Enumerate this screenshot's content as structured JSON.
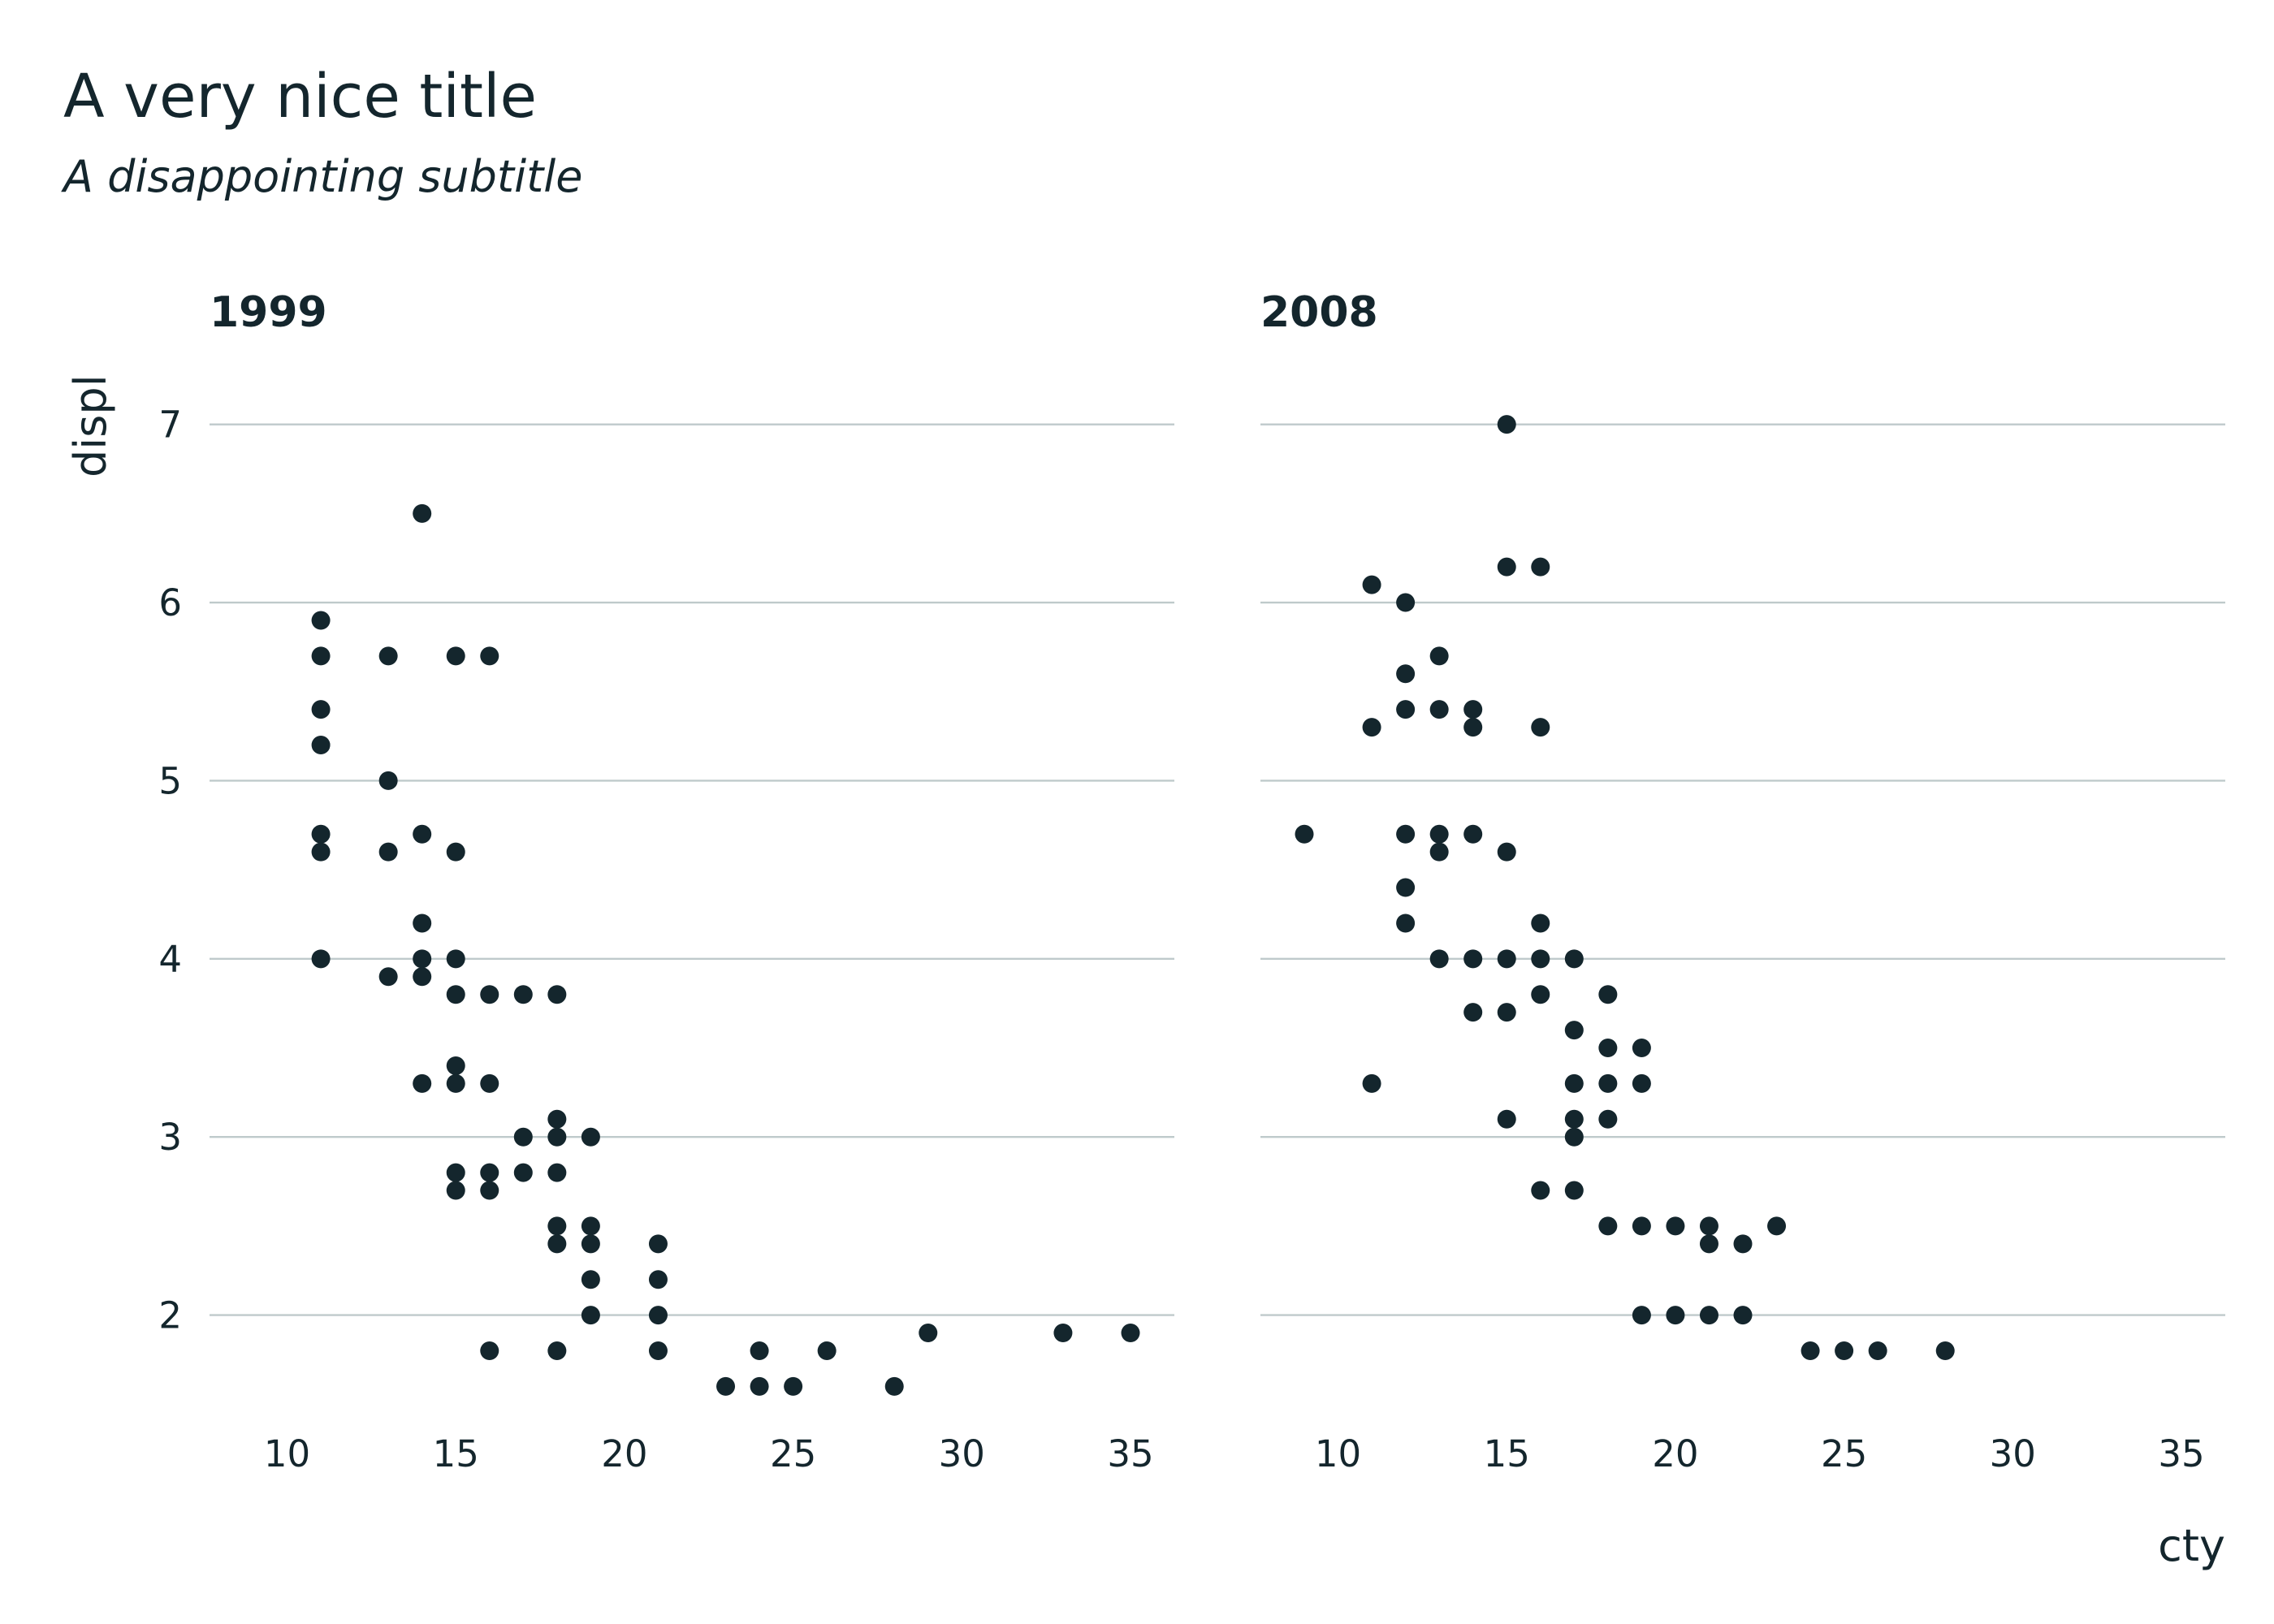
{
  "chart_data": {
    "type": "scatter",
    "title": "A very nice title",
    "subtitle": "A disappointing subtitle",
    "xlabel": "cty",
    "ylabel": "displ",
    "xlim": [
      7.7,
      36.3
    ],
    "ylim": [
      1.36,
      7.24
    ],
    "x_ticks": [
      10,
      15,
      20,
      25,
      30,
      35
    ],
    "y_ticks": [
      2,
      3,
      4,
      5,
      6,
      7
    ],
    "grid": "horizontal major gridlines",
    "point_color": "#14262d",
    "grid_color": "#bfcacb",
    "panels": [
      {
        "label": "1999",
        "points": [
          [
            11,
            5.9
          ],
          [
            11,
            5.7
          ],
          [
            11,
            5.4
          ],
          [
            11,
            5.2
          ],
          [
            11,
            4.7
          ],
          [
            11,
            4.6
          ],
          [
            11,
            4.0
          ],
          [
            13,
            5.7
          ],
          [
            13,
            5.0
          ],
          [
            13,
            4.6
          ],
          [
            13,
            3.9
          ],
          [
            14,
            6.5
          ],
          [
            14,
            4.7
          ],
          [
            14,
            4.2
          ],
          [
            14,
            4.0
          ],
          [
            14,
            3.9
          ],
          [
            14,
            3.3
          ],
          [
            15,
            5.7
          ],
          [
            15,
            4.6
          ],
          [
            15,
            4.0
          ],
          [
            15,
            3.8
          ],
          [
            15,
            3.4
          ],
          [
            15,
            3.3
          ],
          [
            15,
            2.8
          ],
          [
            15,
            2.7
          ],
          [
            16,
            5.7
          ],
          [
            16,
            3.8
          ],
          [
            16,
            3.3
          ],
          [
            16,
            2.8
          ],
          [
            16,
            2.7
          ],
          [
            16,
            1.8
          ],
          [
            17,
            3.8
          ],
          [
            17,
            3.0
          ],
          [
            17,
            2.8
          ],
          [
            18,
            3.8
          ],
          [
            18,
            3.1
          ],
          [
            18,
            3.0
          ],
          [
            18,
            2.8
          ],
          [
            18,
            2.5
          ],
          [
            18,
            2.4
          ],
          [
            18,
            1.8
          ],
          [
            19,
            3.0
          ],
          [
            19,
            2.5
          ],
          [
            19,
            2.4
          ],
          [
            19,
            2.2
          ],
          [
            19,
            2.0
          ],
          [
            21,
            2.4
          ],
          [
            21,
            2.2
          ],
          [
            21,
            2.0
          ],
          [
            21,
            1.8
          ],
          [
            23,
            1.6
          ],
          [
            24,
            1.8
          ],
          [
            24,
            1.6
          ],
          [
            25,
            1.6
          ],
          [
            26,
            1.8
          ],
          [
            28,
            1.6
          ],
          [
            29,
            1.9
          ],
          [
            33,
            1.9
          ],
          [
            35,
            1.9
          ]
        ]
      },
      {
        "label": "2008",
        "points": [
          [
            9,
            4.7
          ],
          [
            11,
            6.1
          ],
          [
            11,
            5.3
          ],
          [
            11,
            3.3
          ],
          [
            12,
            6.0
          ],
          [
            12,
            5.6
          ],
          [
            12,
            5.4
          ],
          [
            12,
            4.7
          ],
          [
            12,
            4.4
          ],
          [
            12,
            4.2
          ],
          [
            13,
            5.7
          ],
          [
            13,
            5.4
          ],
          [
            13,
            4.7
          ],
          [
            13,
            4.6
          ],
          [
            13,
            4.0
          ],
          [
            14,
            5.4
          ],
          [
            14,
            5.3
          ],
          [
            14,
            4.7
          ],
          [
            14,
            4.0
          ],
          [
            14,
            3.7
          ],
          [
            15,
            7.0
          ],
          [
            15,
            6.2
          ],
          [
            15,
            4.6
          ],
          [
            15,
            4.0
          ],
          [
            15,
            3.7
          ],
          [
            15,
            3.1
          ],
          [
            16,
            6.2
          ],
          [
            16,
            5.3
          ],
          [
            16,
            4.2
          ],
          [
            16,
            4.0
          ],
          [
            16,
            3.8
          ],
          [
            16,
            2.7
          ],
          [
            17,
            4.0
          ],
          [
            17,
            3.6
          ],
          [
            17,
            3.3
          ],
          [
            17,
            3.1
          ],
          [
            17,
            3.0
          ],
          [
            17,
            2.7
          ],
          [
            18,
            3.8
          ],
          [
            18,
            3.5
          ],
          [
            18,
            3.3
          ],
          [
            18,
            3.1
          ],
          [
            18,
            2.5
          ],
          [
            19,
            3.5
          ],
          [
            19,
            3.3
          ],
          [
            19,
            2.5
          ],
          [
            19,
            2.0
          ],
          [
            20,
            2.5
          ],
          [
            20,
            2.0
          ],
          [
            21,
            2.5
          ],
          [
            21,
            2.4
          ],
          [
            21,
            2.0
          ],
          [
            22,
            2.4
          ],
          [
            22,
            2.0
          ],
          [
            23,
            2.5
          ],
          [
            24,
            1.8
          ],
          [
            25,
            1.8
          ],
          [
            26,
            1.8
          ],
          [
            28,
            1.8
          ]
        ]
      }
    ]
  }
}
